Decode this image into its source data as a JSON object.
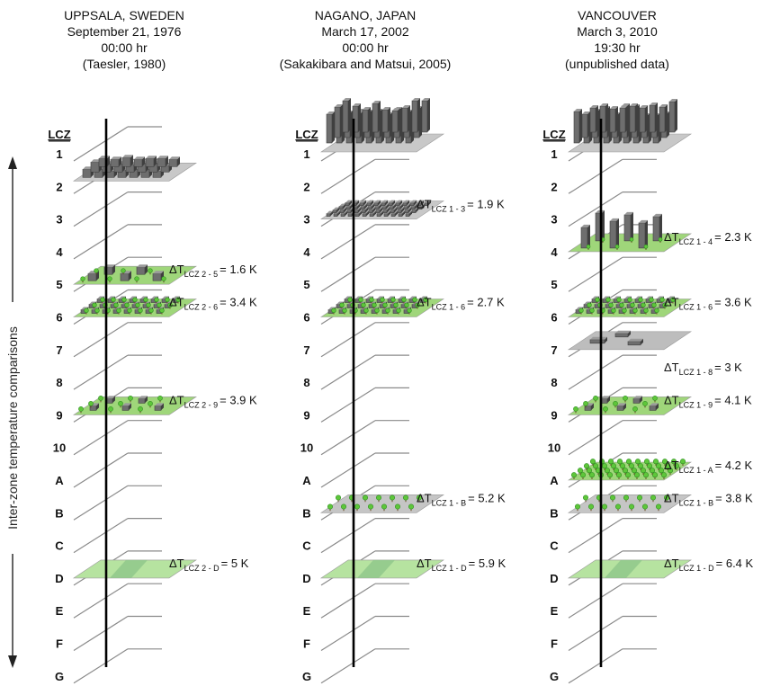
{
  "side_label": "Inter-zone temperature comparisons",
  "lcz_heading": "LCZ",
  "levels": [
    "1",
    "2",
    "3",
    "4",
    "5",
    "6",
    "7",
    "8",
    "9",
    "10",
    "A",
    "B",
    "C",
    "D",
    "E",
    "F",
    "G"
  ],
  "delta_symbol": "ΔT",
  "panels": [
    {
      "header": [
        "UPPSALA, SWEDEN",
        "September 21, 1976",
        "00:00 hr",
        "(Taesler, 1980)"
      ],
      "annotations": [
        {
          "level": "5",
          "type": "trees-buildings",
          "sub": "LCZ 2 - 5",
          "value": "= 1.6 K"
        },
        {
          "level": "6",
          "type": "green-buildings",
          "sub": "LCZ 2 - 6",
          "value": "= 3.4 K"
        },
        {
          "level": "9",
          "type": "sparse",
          "sub": "LCZ 2 - 9",
          "value": "= 3.9 K"
        },
        {
          "level": "D",
          "type": "grass",
          "sub": "LCZ 2 - D",
          "value": "= 5 K"
        }
      ],
      "top_pad": {
        "level": "2",
        "type": "compact-mid"
      }
    },
    {
      "header": [
        "NAGANO, JAPAN",
        "March 17, 2002",
        "00:00 hr",
        "(Sakakibara and Matsui, 2005)"
      ],
      "annotations": [
        {
          "level": "3",
          "type": "compact-low",
          "sub": "LCZ 1 - 3",
          "value": "= 1.9 K"
        },
        {
          "level": "6",
          "type": "green-buildings",
          "sub": "LCZ 1 - 6",
          "value": "= 2.7 K"
        },
        {
          "level": "B",
          "type": "scattered-trees",
          "sub": "LCZ 1 - B",
          "value": "= 5.2 K"
        },
        {
          "level": "D",
          "type": "grass",
          "sub": "LCZ 1 - D",
          "value": "= 5.9 K"
        }
      ],
      "top_pad": {
        "level": "1",
        "type": "compact-high"
      }
    },
    {
      "header": [
        "VANCOUVER",
        "March 3, 2010",
        "19:30 hr",
        "(unpublished data)"
      ],
      "annotations": [
        {
          "level": "4",
          "type": "open-high",
          "sub": "LCZ 1 - 4",
          "value": "= 2.3 K"
        },
        {
          "level": "6",
          "type": "green-buildings",
          "sub": "LCZ 1 - 6",
          "value": "= 3.6 K"
        },
        {
          "level": "7",
          "type": "large-low",
          "sub": "",
          "value": ""
        },
        {
          "level": "8",
          "type": "none",
          "sub": "LCZ 1 - 8",
          "value": "= 3 K"
        },
        {
          "level": "9",
          "type": "sparse",
          "sub": "LCZ 1 - 9",
          "value": "= 4.1 K"
        },
        {
          "level": "A",
          "type": "dense-trees",
          "sub": "LCZ 1 - A",
          "value": "= 4.2 K"
        },
        {
          "level": "B",
          "type": "scattered-trees",
          "sub": "LCZ 1 - B",
          "value": "= 3.8 K"
        },
        {
          "level": "D",
          "type": "grass",
          "sub": "LCZ 1 - D",
          "value": "= 6.4 K"
        }
      ],
      "top_pad": {
        "level": "1",
        "type": "compact-high"
      }
    }
  ],
  "colors": {
    "axis": "#000000",
    "ticks": "#8a8a8a",
    "pad_gray": "#c8c8c8",
    "pad_green": "#9fd67a",
    "grass": "#b6e3a0",
    "grass_dark": "#8fc58a",
    "building": "#6e6e6e",
    "building_dark": "#3f3f3f",
    "tree": "#5ec63a",
    "tree_dark": "#2f8f22"
  }
}
